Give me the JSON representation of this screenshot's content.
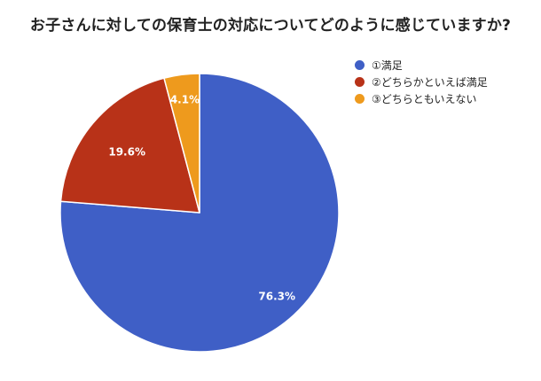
{
  "chart_data": {
    "type": "pie",
    "title": "お子さんに対しての保育士の対応についてどのように感じていますか?",
    "categories": [
      "①満足",
      "②どちらかといえば満足",
      "③どちらともいえない"
    ],
    "values": [
      76.3,
      19.6,
      4.1
    ],
    "value_labels": [
      "76.3%",
      "19.6%",
      "4.1%"
    ],
    "colors": [
      "#3f5fc6",
      "#b83218",
      "#ee9a1d"
    ],
    "start_angle_deg": 0,
    "direction": "clockwise",
    "legend_position": "right"
  }
}
